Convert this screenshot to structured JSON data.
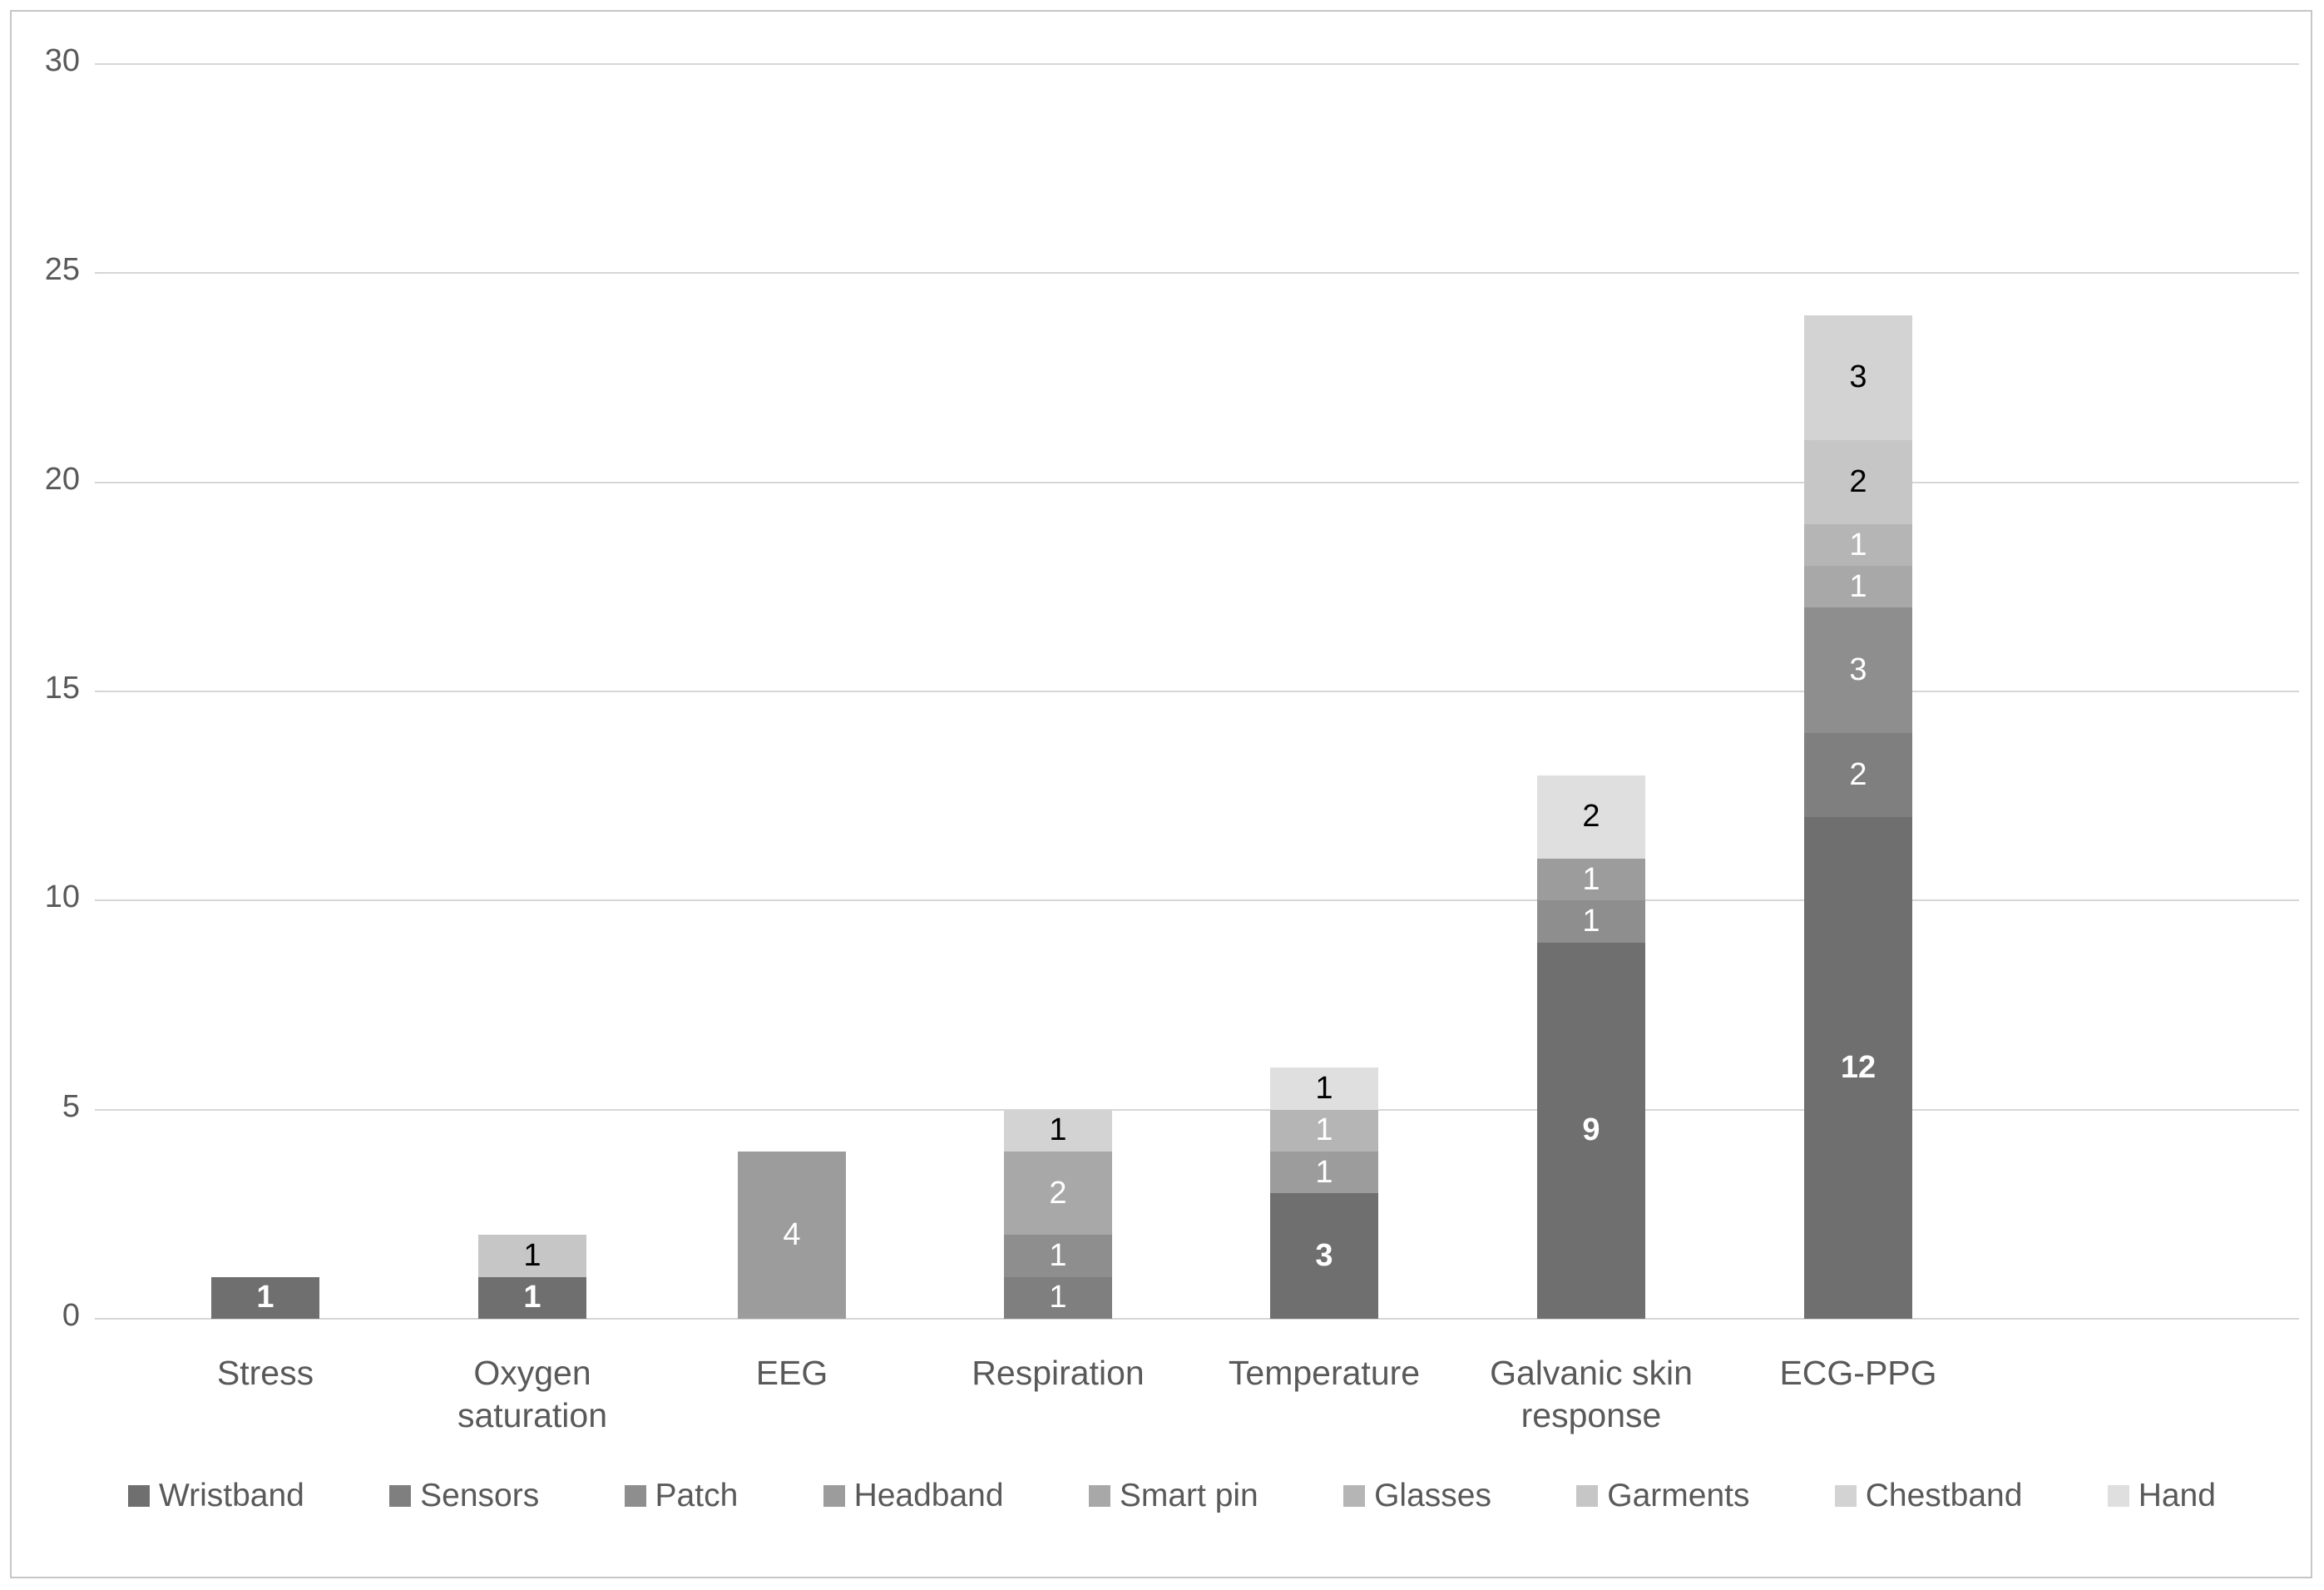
{
  "chart_data": {
    "type": "bar",
    "stacked": true,
    "title": "",
    "xlabel": "",
    "ylabel": "",
    "categories": [
      "Stress",
      "Oxygen saturation",
      "EEG",
      "Respiration",
      "Temperature",
      "Galvanic skin response",
      "ECG-PPG"
    ],
    "category_totals": [
      1,
      2,
      4,
      5,
      6,
      13,
      24
    ],
    "series": [
      {
        "name": "Wristband",
        "color": "#6f6f6f",
        "label_color": "#ffffff",
        "bold_labels": true,
        "values": [
          1,
          1,
          0,
          0,
          3,
          9,
          12
        ]
      },
      {
        "name": "Sensors",
        "color": "#7f7f7f",
        "label_color": "#ffffff",
        "bold_labels": false,
        "values": [
          0,
          0,
          0,
          1,
          0,
          0,
          2
        ]
      },
      {
        "name": "Patch",
        "color": "#8e8e8e",
        "label_color": "#ffffff",
        "bold_labels": false,
        "values": [
          0,
          0,
          0,
          1,
          0,
          1,
          3
        ]
      },
      {
        "name": "Headband",
        "color": "#9c9c9c",
        "label_color": "#ffffff",
        "bold_labels": false,
        "values": [
          0,
          0,
          4,
          0,
          1,
          1,
          0
        ]
      },
      {
        "name": "Smart pin",
        "color": "#a8a8a8",
        "label_color": "#ffffff",
        "bold_labels": false,
        "values": [
          0,
          0,
          0,
          2,
          0,
          0,
          1
        ]
      },
      {
        "name": "Glasses",
        "color": "#b5b5b5",
        "label_color": "#ffffff",
        "bold_labels": false,
        "values": [
          0,
          0,
          0,
          0,
          1,
          0,
          1
        ]
      },
      {
        "name": "Garments",
        "color": "#c6c6c6",
        "label_color": "#000000",
        "bold_labels": false,
        "values": [
          0,
          1,
          0,
          0,
          0,
          0,
          2
        ]
      },
      {
        "name": "Chestband",
        "color": "#d3d3d3",
        "label_color": "#000000",
        "bold_labels": false,
        "values": [
          0,
          0,
          0,
          1,
          0,
          0,
          3
        ]
      },
      {
        "name": "Hand",
        "color": "#dfdfdf",
        "label_color": "#000000",
        "bold_labels": false,
        "values": [
          0,
          0,
          0,
          0,
          1,
          2,
          0
        ]
      }
    ],
    "y_ticks": [
      0,
      5,
      10,
      15,
      20,
      25,
      30
    ],
    "ylim": [
      0,
      30
    ],
    "grid": true,
    "legend_position": "bottom",
    "legend_labels": [
      "Wristband",
      "Sensors",
      "Patch",
      "Headband",
      "Smart pin",
      "Glasses",
      "Garments",
      "Chestband",
      "Hand"
    ],
    "colors": {
      "gridline": "#d6d6d6",
      "axis_text": "#595959",
      "figure_border": "#c6c6c6",
      "background": "#ffffff"
    }
  }
}
